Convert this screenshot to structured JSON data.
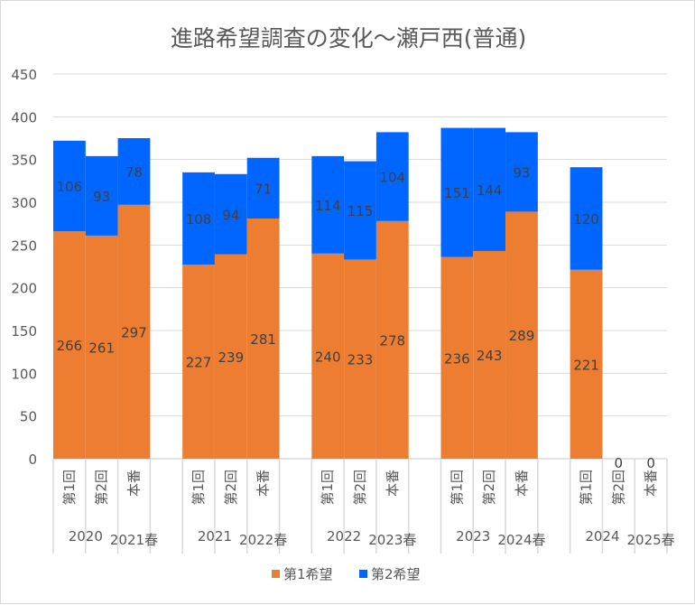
{
  "chart_data": {
    "type": "bar",
    "stacked": true,
    "title": "進路希望調査の変化～瀬戸西(普通)",
    "categories": [
      "第1回",
      "第2回",
      "本番",
      "第1回",
      "第2回",
      "本番",
      "第1回",
      "第2回",
      "本番",
      "第1回",
      "第2回",
      "本番",
      "第1回",
      "第2回",
      "本番"
    ],
    "group_labels": [
      {
        "primary": "2020",
        "secondary": "2021春"
      },
      {
        "primary": "2021",
        "secondary": "2022春"
      },
      {
        "primary": "2022",
        "secondary": "2023春"
      },
      {
        "primary": "2023",
        "secondary": "2024春"
      },
      {
        "primary": "2024",
        "secondary": "2025春"
      }
    ],
    "series": [
      {
        "name": "第1希望",
        "color": "#ed7d31",
        "values": [
          266,
          261,
          297,
          227,
          239,
          281,
          240,
          233,
          278,
          236,
          243,
          289,
          221,
          0,
          0
        ]
      },
      {
        "name": "第2希望",
        "color": "#0066ff",
        "values": [
          106,
          93,
          78,
          108,
          94,
          71,
          114,
          115,
          104,
          151,
          144,
          93,
          120,
          0,
          0
        ]
      }
    ],
    "ylim": [
      0,
      450
    ],
    "yticks": [
      0,
      50,
      100,
      150,
      200,
      250,
      300,
      350,
      400,
      450
    ],
    "grid": true,
    "legend": "bottom"
  }
}
